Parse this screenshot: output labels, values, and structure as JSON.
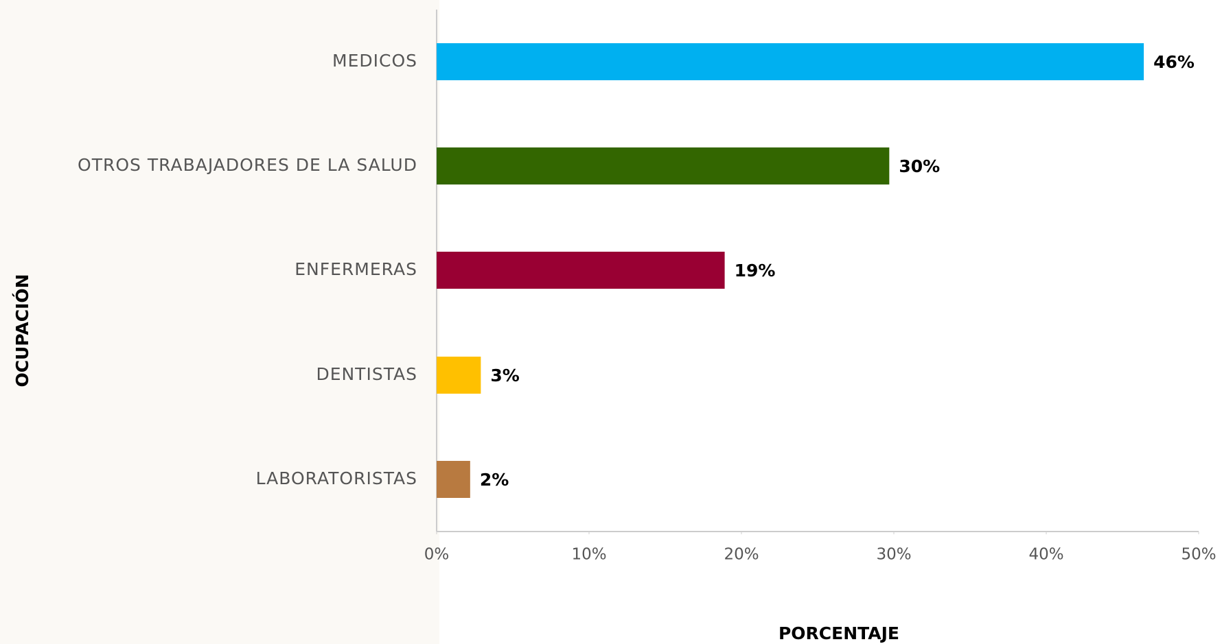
{
  "chart_data": {
    "type": "barh",
    "categories": [
      "MEDICOS",
      "OTROS TRABAJADORES DE LA SALUD",
      "ENFERMERAS",
      "DENTISTAS",
      "LABORATORISTAS"
    ],
    "values": [
      46.4,
      29.7,
      18.9,
      2.9,
      2.2
    ],
    "value_labels": [
      "46%",
      "30%",
      "19%",
      "3%",
      "2%"
    ],
    "colors": [
      "#00b0f0",
      "#336600",
      "#990033",
      "#ffc000",
      "#b87a40"
    ],
    "xlim": [
      0,
      50
    ],
    "xticks": [
      {
        "value": 0,
        "label": "0%"
      },
      {
        "value": 10,
        "label": "10%"
      },
      {
        "value": 20,
        "label": "20%"
      },
      {
        "value": 30,
        "label": "30%"
      },
      {
        "value": 40,
        "label": "40%"
      },
      {
        "value": 50,
        "label": "50%"
      }
    ],
    "xlabel": "PORCENTAJE",
    "ylabel": "OCUPACIÓN"
  }
}
